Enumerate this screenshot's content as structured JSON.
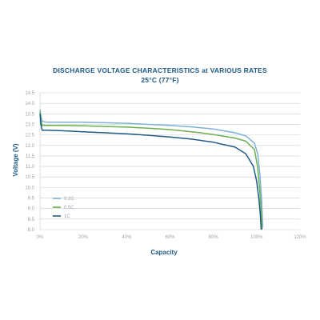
{
  "chart_data": {
    "type": "line",
    "title": "DISCHARGE VOLTAGE CHARACTERISTICS at VARIOUS RATES",
    "subtitle": "25°C (77°F)",
    "xlabel": "Capacity",
    "ylabel": "Voltage (V)",
    "xlim": [
      0,
      120
    ],
    "ylim": [
      8.0,
      14.5
    ],
    "x_tick_labels": [
      "0%",
      "20%",
      "40%",
      "60%",
      "80%",
      "100%",
      "120%"
    ],
    "x_tick_values": [
      0,
      20,
      40,
      60,
      80,
      100,
      120
    ],
    "y_tick_labels": [
      "8.0",
      "8.5",
      "9.0",
      "9.5",
      "10.0",
      "10.5",
      "11.0",
      "11.5",
      "12.0",
      "12.5",
      "13.0",
      "13.5",
      "14.0",
      "14.5"
    ],
    "y_tick_values": [
      8.0,
      8.5,
      9.0,
      9.5,
      10.0,
      10.5,
      11.0,
      11.5,
      12.0,
      12.5,
      13.0,
      13.5,
      14.0,
      14.5
    ],
    "grid": true,
    "legend_position": "bottom-left",
    "series": [
      {
        "name": "0.2C",
        "color": "#7fb0d8",
        "x": [
          0,
          0.4,
          1,
          3,
          10,
          20,
          30,
          40,
          50,
          60,
          70,
          80,
          90,
          95,
          99,
          100.5,
          101.5,
          102.3,
          102.8
        ],
        "y": [
          13.7,
          13.4,
          13.15,
          13.1,
          13.1,
          13.1,
          13.08,
          13.05,
          13.0,
          12.95,
          12.88,
          12.78,
          12.6,
          12.45,
          12.1,
          11.6,
          10.6,
          9.4,
          8.1
        ]
      },
      {
        "name": "0.5C",
        "color": "#6ab04c",
        "x": [
          0,
          0.4,
          1,
          3,
          10,
          20,
          30,
          40,
          50,
          60,
          70,
          80,
          90,
          95,
          99,
          100.4,
          101.3,
          102,
          102.5
        ],
        "y": [
          13.6,
          13.2,
          12.95,
          12.95,
          12.95,
          12.93,
          12.9,
          12.87,
          12.82,
          12.75,
          12.65,
          12.52,
          12.35,
          12.2,
          11.8,
          11.0,
          10.0,
          9.0,
          8.0
        ]
      },
      {
        "name": "1C",
        "color": "#1f5a86",
        "x": [
          0,
          0.4,
          1,
          3,
          10,
          20,
          30,
          40,
          50,
          60,
          70,
          80,
          90,
          95,
          98.5,
          100,
          101,
          101.6,
          102.1
        ],
        "y": [
          13.5,
          13.0,
          12.72,
          12.72,
          12.7,
          12.65,
          12.6,
          12.55,
          12.48,
          12.4,
          12.3,
          12.15,
          11.92,
          11.6,
          11.0,
          10.3,
          9.5,
          8.8,
          8.0
        ]
      }
    ]
  }
}
